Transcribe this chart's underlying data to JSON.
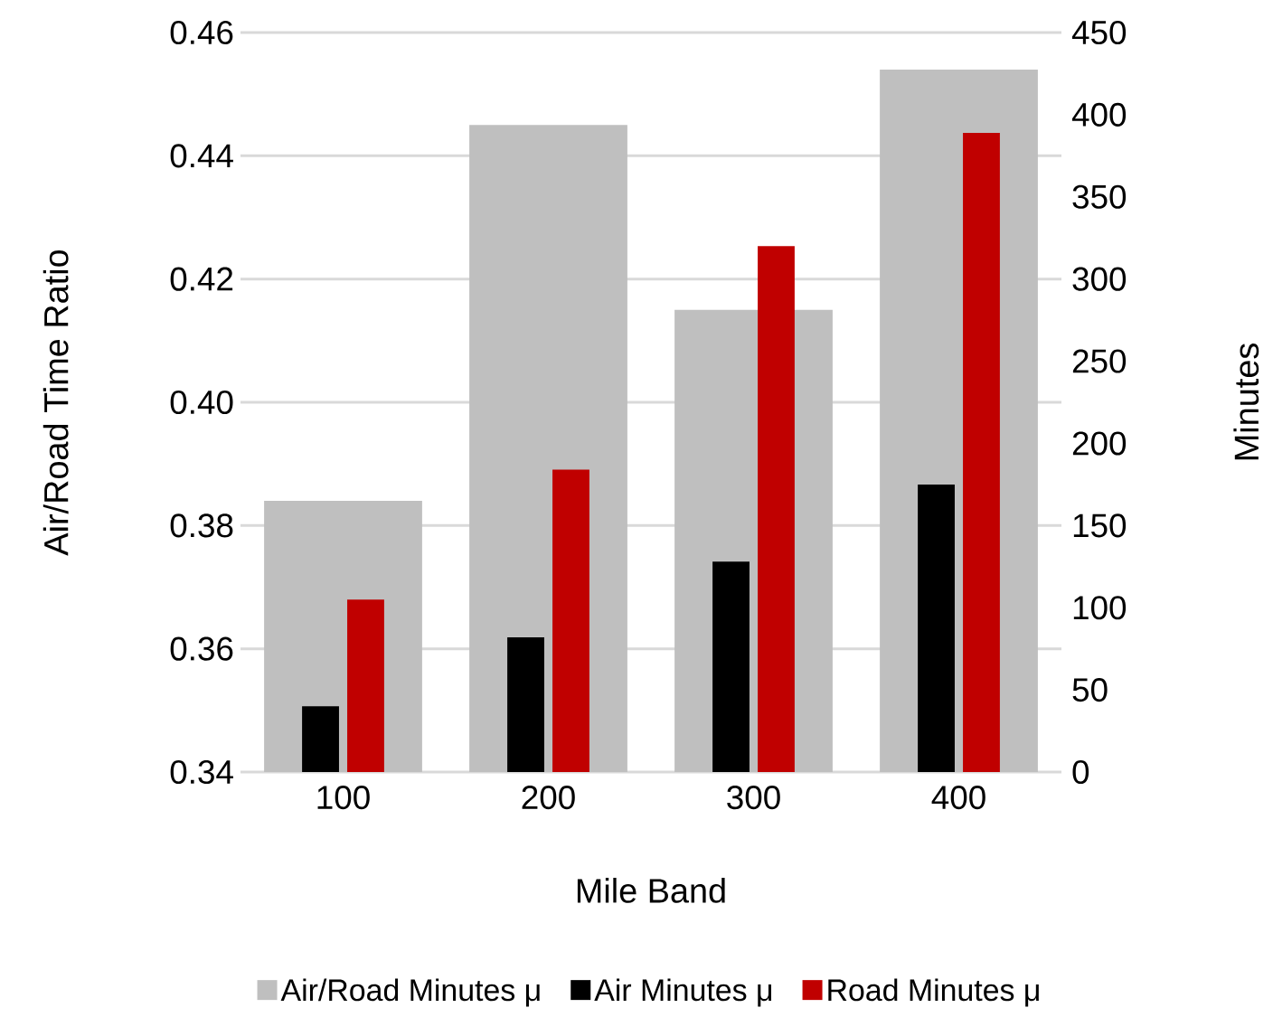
{
  "chart_data": {
    "type": "bar",
    "xlabel": "Mile Band",
    "ylabel": "Air/Road Time Ratio",
    "y2label": "Minutes",
    "categories": [
      "100",
      "200",
      "300",
      "400"
    ],
    "series": [
      {
        "name": "Air/Road Minutes μ",
        "color": "#bfbfbf",
        "axis": "y",
        "values": [
          0.384,
          0.445,
          0.415,
          0.454
        ]
      },
      {
        "name": "Air Minutes μ",
        "color": "#000000",
        "axis": "y2",
        "values": [
          40,
          82,
          128,
          175
        ]
      },
      {
        "name": "Road Minutes μ",
        "color": "#c00000",
        "axis": "y2",
        "values": [
          105,
          184,
          320,
          389
        ]
      }
    ],
    "ylim": [
      0.34,
      0.46
    ],
    "yticks": [
      {
        "value": 0.34,
        "label": "0.34"
      },
      {
        "value": 0.36,
        "label": "0.36"
      },
      {
        "value": 0.38,
        "label": "0.38"
      },
      {
        "value": 0.4,
        "label": "0.40"
      },
      {
        "value": 0.42,
        "label": "0.42"
      },
      {
        "value": 0.44,
        "label": "0.44"
      },
      {
        "value": 0.46,
        "label": "0.46"
      }
    ],
    "y2lim": [
      0,
      450
    ],
    "y2ticks": [
      0,
      50,
      100,
      150,
      200,
      250,
      300,
      350,
      400,
      450
    ],
    "grid": "y",
    "legend": "bottom"
  }
}
